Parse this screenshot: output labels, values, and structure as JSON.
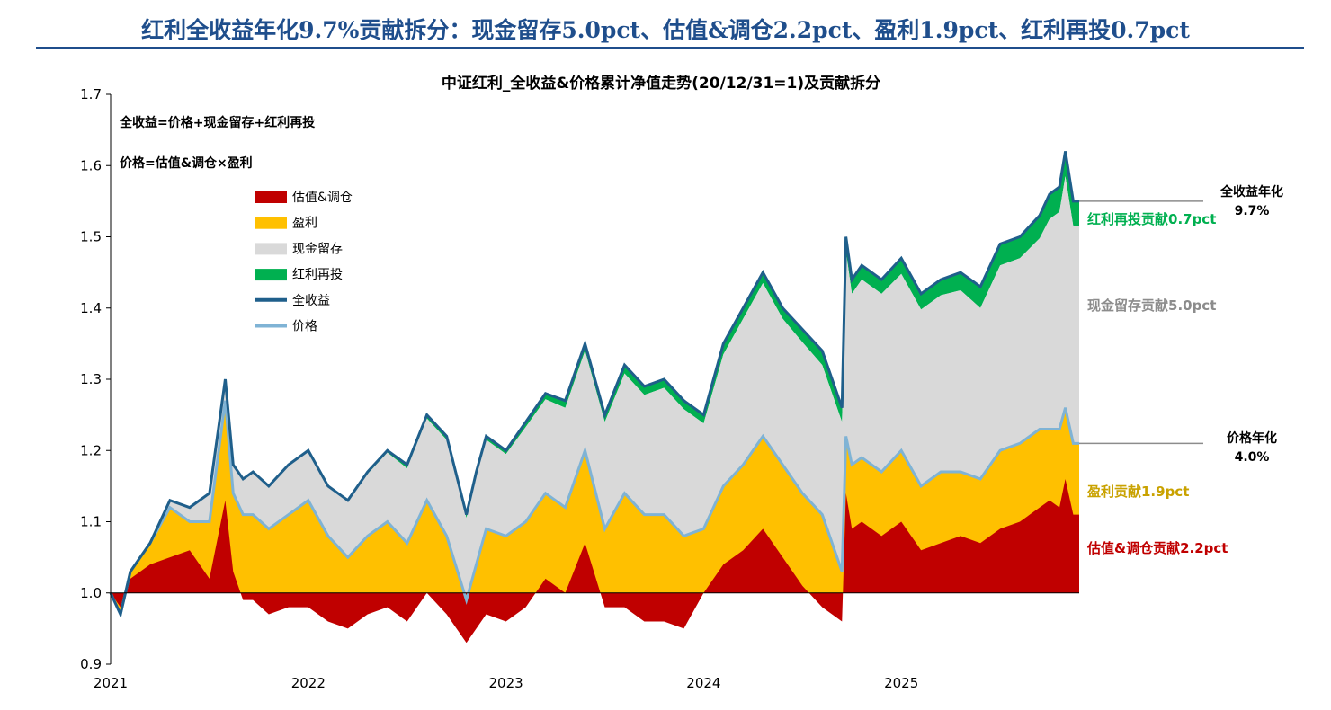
{
  "headline": "红利全收益年化9.7%贡献拆分：现金留存5.0pct、估值&调仓2.2pct、盈利1.9pct、红利再投0.7pct",
  "colors": {
    "headline": "#1f4e8c",
    "valuation": "#c00000",
    "earnings": "#ffc000",
    "cash": "#d9d9d9",
    "reinvest": "#00b050",
    "total_return": "#1f5f8b",
    "price": "#7fb3d5",
    "annot_earnings": "#c9a200",
    "annot_cash": "#8c8c8c"
  },
  "chart_data": {
    "type": "area",
    "title": "中证红利_全收益&价格累计净值走势(20/12/31=1)及贡献拆分",
    "xlabel": "",
    "ylabel": "",
    "ylim": [
      0.9,
      1.7
    ],
    "yticks": [
      "0.9",
      "1.0",
      "1.1",
      "1.2",
      "1.3",
      "1.4",
      "1.5",
      "1.6",
      "1.7"
    ],
    "xlim": [
      2021.0,
      2025.9
    ],
    "xticks": [
      {
        "value": 2021,
        "label": "2021"
      },
      {
        "value": 2022,
        "label": "2022"
      },
      {
        "value": 2023,
        "label": "2023"
      },
      {
        "value": 2024,
        "label": "2024"
      },
      {
        "value": 2025,
        "label": "2025"
      }
    ],
    "formulas": [
      "全收益=价格+现金留存+红利再投",
      "价格=估值&调仓×盈利"
    ],
    "legend": [
      {
        "label": "估值&调仓",
        "kind": "area",
        "color_key": "valuation"
      },
      {
        "label": "盈利",
        "kind": "area",
        "color_key": "earnings"
      },
      {
        "label": "现金留存",
        "kind": "area",
        "color_key": "cash"
      },
      {
        "label": "红利再投",
        "kind": "area",
        "color_key": "reinvest"
      },
      {
        "label": "全收益",
        "kind": "line",
        "color_key": "total_return"
      },
      {
        "label": "价格",
        "kind": "line",
        "color_key": "price"
      }
    ],
    "x": [
      2021.0,
      2021.05,
      2021.1,
      2021.2,
      2021.3,
      2021.4,
      2021.5,
      2021.58,
      2021.62,
      2021.67,
      2021.72,
      2021.8,
      2021.9,
      2022.0,
      2022.1,
      2022.2,
      2022.3,
      2022.4,
      2022.5,
      2022.6,
      2022.7,
      2022.8,
      2022.85,
      2022.9,
      2023.0,
      2023.1,
      2023.2,
      2023.3,
      2023.4,
      2023.5,
      2023.6,
      2023.7,
      2023.8,
      2023.9,
      2024.0,
      2024.1,
      2024.2,
      2024.3,
      2024.4,
      2024.5,
      2024.6,
      2024.7,
      2024.72,
      2024.75,
      2024.8,
      2024.9,
      2025.0,
      2025.1,
      2025.2,
      2025.3,
      2025.4,
      2025.5,
      2025.6,
      2025.7,
      2025.75,
      2025.8,
      2025.83,
      2025.87,
      2025.9
    ],
    "series": [
      {
        "name": "全收益",
        "values": [
          1.0,
          0.97,
          1.03,
          1.07,
          1.13,
          1.12,
          1.14,
          1.3,
          1.18,
          1.16,
          1.17,
          1.15,
          1.18,
          1.2,
          1.15,
          1.13,
          1.17,
          1.2,
          1.18,
          1.25,
          1.22,
          1.11,
          1.17,
          1.22,
          1.2,
          1.24,
          1.28,
          1.27,
          1.35,
          1.25,
          1.32,
          1.29,
          1.3,
          1.27,
          1.25,
          1.35,
          1.4,
          1.45,
          1.4,
          1.37,
          1.34,
          1.26,
          1.5,
          1.44,
          1.46,
          1.44,
          1.47,
          1.42,
          1.44,
          1.45,
          1.43,
          1.49,
          1.5,
          1.53,
          1.56,
          1.57,
          1.62,
          1.55,
          1.55
        ]
      },
      {
        "name": "红利再投",
        "values": [
          0.0,
          0.0,
          0.0,
          0.0,
          0.0,
          0.0,
          0.0,
          0.0,
          0.0,
          0.0,
          0.0,
          0.0,
          0.0,
          0.0,
          0.0,
          0.0,
          0.003,
          0.003,
          0.005,
          0.005,
          0.005,
          0.005,
          0.005,
          0.005,
          0.005,
          0.007,
          0.008,
          0.01,
          0.01,
          0.01,
          0.012,
          0.012,
          0.012,
          0.012,
          0.012,
          0.015,
          0.015,
          0.015,
          0.015,
          0.018,
          0.02,
          0.02,
          0.02,
          0.02,
          0.02,
          0.02,
          0.022,
          0.022,
          0.022,
          0.025,
          0.03,
          0.03,
          0.03,
          0.032,
          0.035,
          0.035,
          0.035,
          0.035,
          0.035
        ]
      },
      {
        "name": "价格",
        "values": [
          1.0,
          0.97,
          1.03,
          1.07,
          1.12,
          1.1,
          1.1,
          1.27,
          1.14,
          1.11,
          1.11,
          1.09,
          1.11,
          1.13,
          1.08,
          1.05,
          1.08,
          1.1,
          1.07,
          1.13,
          1.08,
          0.99,
          1.04,
          1.09,
          1.08,
          1.1,
          1.14,
          1.12,
          1.2,
          1.09,
          1.14,
          1.11,
          1.11,
          1.08,
          1.09,
          1.15,
          1.18,
          1.22,
          1.18,
          1.14,
          1.11,
          1.03,
          1.22,
          1.18,
          1.19,
          1.17,
          1.2,
          1.15,
          1.17,
          1.17,
          1.16,
          1.2,
          1.21,
          1.23,
          1.23,
          1.23,
          1.26,
          1.21,
          1.21
        ]
      },
      {
        "name": "估值&调仓",
        "values": [
          1.0,
          0.98,
          1.02,
          1.04,
          1.05,
          1.06,
          1.02,
          1.13,
          1.03,
          0.99,
          0.99,
          0.97,
          0.98,
          0.98,
          0.96,
          0.95,
          0.97,
          0.98,
          0.96,
          1.0,
          0.97,
          0.93,
          0.95,
          0.97,
          0.96,
          0.98,
          1.02,
          1.0,
          1.07,
          0.98,
          0.98,
          0.96,
          0.96,
          0.95,
          1.0,
          1.04,
          1.06,
          1.09,
          1.05,
          1.01,
          0.98,
          0.96,
          1.14,
          1.09,
          1.1,
          1.08,
          1.1,
          1.06,
          1.07,
          1.08,
          1.07,
          1.09,
          1.1,
          1.12,
          1.13,
          1.12,
          1.16,
          1.11,
          1.11
        ]
      }
    ],
    "end_labels": [
      {
        "text": "全收益年化",
        "value": "9.7%",
        "color_key": "total_return",
        "color": "#000000"
      },
      {
        "text": "价格年化",
        "value": "4.0%",
        "color_key": "price",
        "color": "#000000"
      }
    ],
    "annotations": [
      {
        "text": "红利再投贡献0.7pct",
        "color_key": "reinvest"
      },
      {
        "text": "现金留存贡献5.0pct",
        "color_key": "annot_cash"
      },
      {
        "text": "盈利贡献1.9pct",
        "color_key": "annot_earnings"
      },
      {
        "text": "估值&调仓贡献2.2pct",
        "color_key": "valuation"
      }
    ]
  }
}
